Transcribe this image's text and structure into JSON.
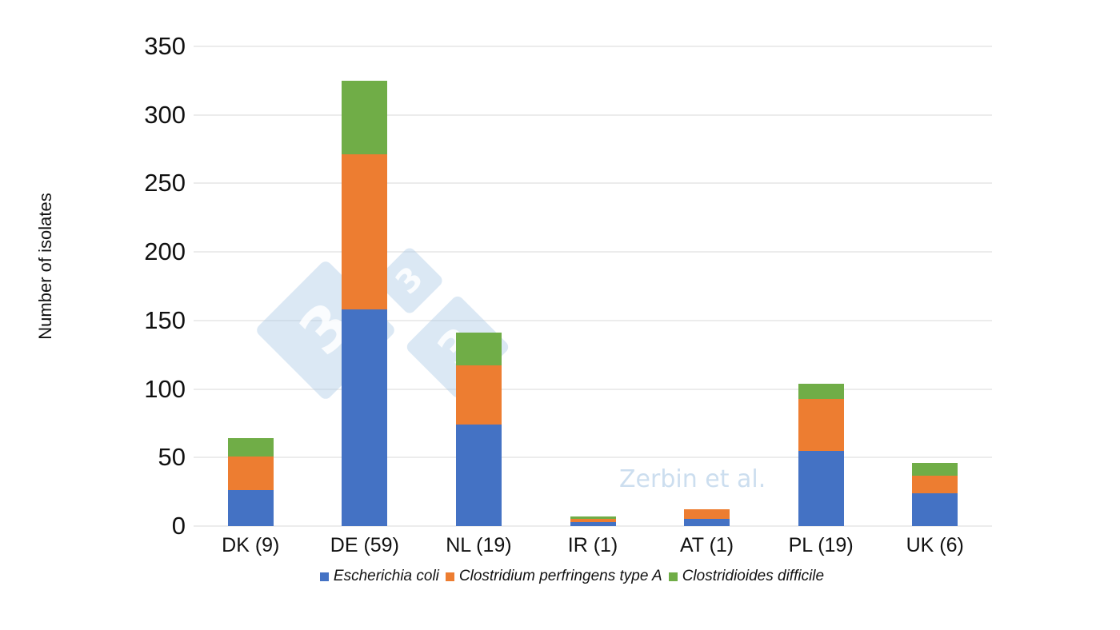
{
  "chart_data": {
    "type": "bar",
    "stacked": true,
    "title": "",
    "xlabel": "",
    "ylabel": "Number of isolates",
    "ylim": [
      0,
      350
    ],
    "yticks": [
      0,
      50,
      100,
      150,
      200,
      250,
      300,
      350
    ],
    "grid": true,
    "legend_position": "bottom",
    "categories": [
      "DK (9)",
      "DE (59)",
      "NL (19)",
      "IR (1)",
      "AT (1)",
      "PL (19)",
      "UK (6)"
    ],
    "series": [
      {
        "name": "Escherichia coli",
        "color": "#4472C4",
        "values": [
          26,
          158,
          74,
          3,
          5,
          55,
          24
        ]
      },
      {
        "name": "Clostridium perfringens type A",
        "color": "#ED7D31",
        "values": [
          25,
          113,
          43,
          2,
          7,
          38,
          13
        ]
      },
      {
        "name": "Clostridioides difficile",
        "color": "#70AD47",
        "values": [
          13,
          54,
          24,
          2,
          0,
          11,
          9
        ]
      }
    ],
    "totals": [
      64,
      325,
      141,
      7,
      12,
      104,
      46
    ],
    "annotations": [
      "Zerbin et al."
    ]
  },
  "watermark": {
    "glyph": "3",
    "credit": "Zerbin et al."
  }
}
